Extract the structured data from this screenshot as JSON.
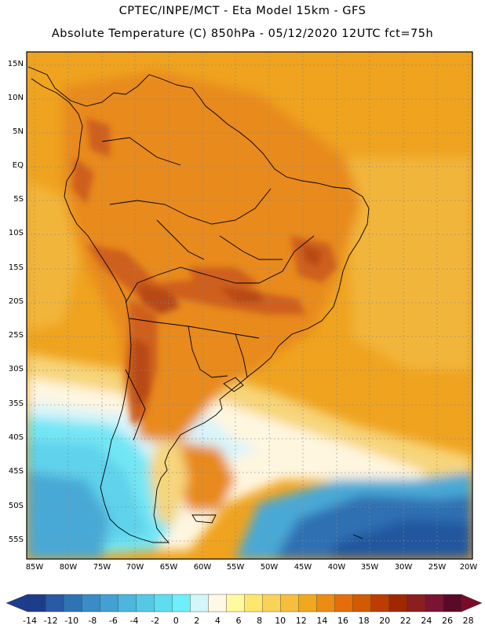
{
  "header": {
    "line1": "CPTEC/INPE/MCT -  Eta Model 15km - GFS",
    "line2": "Absolute Temperature (C) 850hPa - 05/12/2020 12UTC fct=75h"
  },
  "axes": {
    "lat_labels": [
      "15N",
      "10N",
      "5N",
      "EQ",
      "5S",
      "10S",
      "15S",
      "20S",
      "25S",
      "30S",
      "35S",
      "40S",
      "45S",
      "50S",
      "55S"
    ],
    "lon_labels": [
      "85W",
      "80W",
      "75W",
      "70W",
      "65W",
      "60W",
      "55W",
      "50W",
      "45W",
      "40W",
      "35W",
      "30W",
      "25W",
      "20W"
    ]
  },
  "colorbar": {
    "labels": [
      "-14",
      "-12",
      "-10",
      "-8",
      "-6",
      "-4",
      "-2",
      "0",
      "2",
      "4",
      "6",
      "8",
      "10",
      "12",
      "14",
      "16",
      "18",
      "20",
      "22",
      "24",
      "26",
      "28"
    ],
    "colors": [
      "#1e3c8c",
      "#2a5aa5",
      "#2e74b5",
      "#3a8cc8",
      "#42a0d2",
      "#4cb6de",
      "#56c8e6",
      "#60dcf0",
      "#6ef0fa",
      "#d2f6fa",
      "#fff8e6",
      "#fffaa0",
      "#ffe66e",
      "#fad25a",
      "#f5be3c",
      "#f0a91e",
      "#eb8c14",
      "#e66e0a",
      "#d25a00",
      "#be3c00",
      "#a02800",
      "#8c1e1e",
      "#7a1432",
      "#5a0a28"
    ],
    "low_color": "#1e3c8c",
    "high_color": "#7a0a2a"
  },
  "map": {
    "frame_color": "#000000",
    "grid_style": "dotted",
    "field_colors": {
      "very_hot": "#cf5f1b",
      "hot": "#e88a1e",
      "warm": "#efa31f",
      "mild": "#f2b53a",
      "cool_yellow": "#f7d57a",
      "pale": "#fff6e0",
      "pale_cyan": "#d8f4fa",
      "cyan": "#73e6f5",
      "light_blue": "#5fd2ec",
      "blue": "#4aa9d6",
      "deep_blue": "#2f6fb2",
      "darkest": "#24579f"
    }
  }
}
